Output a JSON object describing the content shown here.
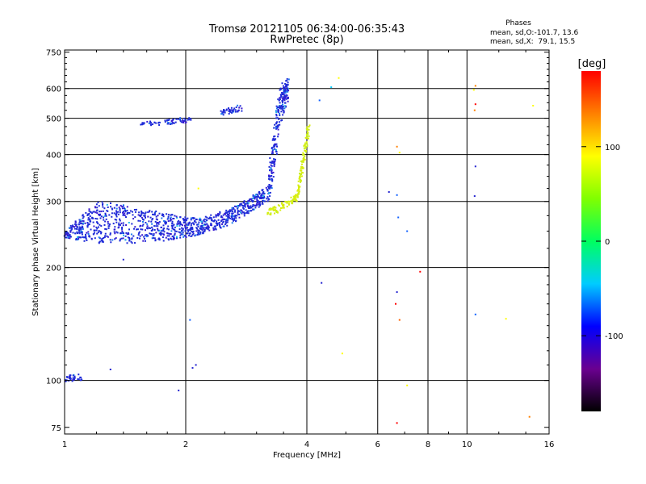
{
  "chart_data": {
    "type": "scatter",
    "title": "Tromsø 20121105 06:34:00-06:35:43",
    "subtitle": "RwPretec (8p)",
    "xlabel": "Frequency [MHz]",
    "ylabel": "Stationary phase Virtual Height [km]",
    "x_scale": "log",
    "y_scale": "log",
    "xlim": [
      1,
      16
    ],
    "ylim": [
      72,
      760
    ],
    "x_ticks": [
      1,
      2,
      4,
      6,
      8,
      10,
      16
    ],
    "y_ticks": [
      75,
      100,
      200,
      300,
      400,
      500,
      600,
      750
    ],
    "grid": true,
    "stats": {
      "heading": "Phases",
      "line_o": "mean, sd,O:-101.7, 13.6",
      "line_x": "mean, sd,X:  79.1, 15.5"
    },
    "colorbar": {
      "label": "[deg]",
      "range": [
        -180,
        180
      ],
      "ticks": [
        100,
        0,
        -100
      ],
      "colors": [
        "#000000",
        "#6a0090",
        "#0000ff",
        "#00ccff",
        "#00ff60",
        "#80ff00",
        "#ffff00",
        "#ff8000",
        "#ff0000"
      ]
    },
    "series": [
      {
        "name": "O",
        "color": "#1f2bd8",
        "traces": [
          {
            "kind": "band",
            "f_start": 1.0,
            "f_end": 3.2,
            "h_low": [
              240,
              232,
              232,
              236,
              244,
              262,
              300
            ],
            "h_high": [
              250,
              300,
              292,
              278,
              270,
              290,
              330
            ]
          },
          {
            "kind": "band",
            "f_start": 3.2,
            "f_end": 3.6,
            "h_low": [
              300,
              330,
              400,
              480,
              520,
              560
            ],
            "h_high": [
              330,
              420,
              520,
              600,
              630,
              640
            ]
          },
          {
            "kind": "band",
            "f_start": 1.55,
            "f_end": 2.1,
            "h_low": [
              480,
              478,
              482,
              490
            ],
            "h_high": [
              492,
              490,
              500,
              506
            ]
          },
          {
            "kind": "band",
            "f_start": 2.45,
            "f_end": 2.75,
            "h_low": [
              510,
              520
            ],
            "h_high": [
              525,
              545
            ]
          },
          {
            "kind": "band",
            "f_start": 1.0,
            "f_end": 1.1,
            "h_low": [
              99,
              100
            ],
            "h_high": [
              103,
              104
            ]
          }
        ]
      },
      {
        "name": "X",
        "color": "#d8ee10",
        "traces": [
          {
            "kind": "band",
            "f_start": 3.2,
            "f_end": 3.8,
            "h_low": [
              275,
              280,
              292,
              300
            ],
            "h_high": [
              285,
              295,
              305,
              315
            ]
          },
          {
            "kind": "band",
            "f_start": 3.8,
            "f_end": 4.05,
            "h_low": [
              300,
              340,
              400,
              460
            ],
            "h_high": [
              320,
              380,
              440,
              500
            ]
          }
        ]
      }
    ],
    "scattered_points": [
      {
        "x": 1.4,
        "y": 210,
        "color": "#2020d0"
      },
      {
        "x": 1.3,
        "y": 107,
        "color": "#2020d0"
      },
      {
        "x": 1.92,
        "y": 94,
        "color": "#2020d0"
      },
      {
        "x": 2.08,
        "y": 108,
        "color": "#2020d0"
      },
      {
        "x": 2.12,
        "y": 110,
        "color": "#2020d0"
      },
      {
        "x": 2.05,
        "y": 145,
        "color": "#1060ff"
      },
      {
        "x": 2.15,
        "y": 325,
        "color": "#ffff00"
      },
      {
        "x": 4.3,
        "y": 558,
        "color": "#1060ff"
      },
      {
        "x": 4.6,
        "y": 605,
        "color": "#00ccff"
      },
      {
        "x": 4.8,
        "y": 640,
        "color": "#ffff00"
      },
      {
        "x": 4.35,
        "y": 182,
        "color": "#2020d0"
      },
      {
        "x": 4.9,
        "y": 118,
        "color": "#ffff00"
      },
      {
        "x": 6.7,
        "y": 420,
        "color": "#ff8000"
      },
      {
        "x": 6.8,
        "y": 405,
        "color": "#ffff00"
      },
      {
        "x": 6.4,
        "y": 318,
        "color": "#2020d0"
      },
      {
        "x": 6.7,
        "y": 312,
        "color": "#1060ff"
      },
      {
        "x": 6.75,
        "y": 272,
        "color": "#1060ff"
      },
      {
        "x": 7.1,
        "y": 250,
        "color": "#1060ff"
      },
      {
        "x": 6.7,
        "y": 172,
        "color": "#2020d0"
      },
      {
        "x": 6.65,
        "y": 160,
        "color": "#ff0000"
      },
      {
        "x": 6.8,
        "y": 145,
        "color": "#ff6000"
      },
      {
        "x": 7.65,
        "y": 195,
        "color": "#ff0000"
      },
      {
        "x": 6.7,
        "y": 77,
        "color": "#ff0000"
      },
      {
        "x": 7.1,
        "y": 97,
        "color": "#ffff00"
      },
      {
        "x": 10.5,
        "y": 610,
        "color": "#ff8000"
      },
      {
        "x": 10.4,
        "y": 595,
        "color": "#ffff00"
      },
      {
        "x": 10.5,
        "y": 545,
        "color": "#ff0000"
      },
      {
        "x": 10.45,
        "y": 525,
        "color": "#ff8000"
      },
      {
        "x": 10.5,
        "y": 372,
        "color": "#2020d0"
      },
      {
        "x": 10.45,
        "y": 310,
        "color": "#2020d0"
      },
      {
        "x": 10.5,
        "y": 150,
        "color": "#1060ff"
      },
      {
        "x": 12.5,
        "y": 146,
        "color": "#ffff00"
      },
      {
        "x": 14.3,
        "y": 80,
        "color": "#ff8000"
      },
      {
        "x": 14.6,
        "y": 540,
        "color": "#ffff00"
      }
    ]
  }
}
